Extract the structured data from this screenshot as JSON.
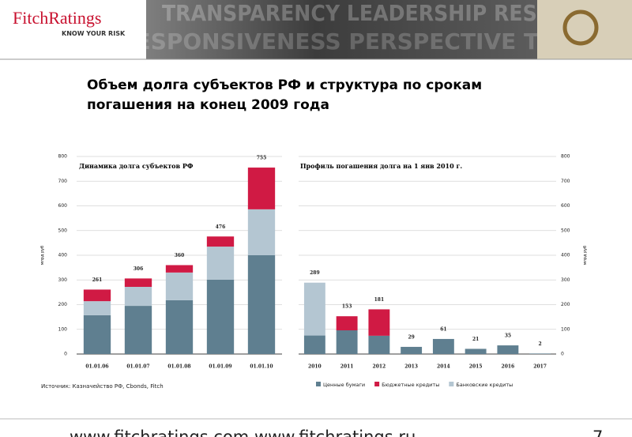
{
  "header": {
    "logo": "FitchRatings",
    "tagline": "KNOW YOUR RISK",
    "banner_top": "TRANSPARENCY LEADERSHIP RESPONSIVENESS",
    "banner_bottom": "RESPONSIVENESS PERSPECTIVE TRANSPARENCY"
  },
  "title": "Объем долга субъектов РФ и структура по срокам погашения на конец 2009 года",
  "chart_data": [
    {
      "type": "stacked-bar",
      "title": "Динамика долга субъектов РФ",
      "y_label": "млрд руб",
      "categories": [
        "01.01.06",
        "01.01.07",
        "01.01.08",
        "01.01.09",
        "01.01.10"
      ],
      "series": [
        {
          "name": "Ценные бумаги",
          "color": "#5f7f90",
          "values": [
            157,
            195,
            218,
            301,
            400
          ]
        },
        {
          "name": "Банковские кредиты",
          "color": "#b4c6d2",
          "values": [
            57,
            77,
            112,
            134,
            186
          ]
        },
        {
          "name": "Бюджетные кредиты",
          "color": "#d01a44",
          "values": [
            47,
            34,
            30,
            41,
            169
          ]
        }
      ],
      "totals": [
        261,
        306,
        360,
        476,
        755
      ],
      "ylim": [
        0,
        800
      ],
      "yticks": [
        0,
        100,
        200,
        300,
        400,
        500,
        600,
        700,
        800
      ],
      "axis_side": "left",
      "grid": true
    },
    {
      "type": "stacked-bar",
      "title": "Профиль погашения долга на 1 янв 2010 г.",
      "y_label": "млрд руб",
      "categories": [
        "2010",
        "2011",
        "2012",
        "2013",
        "2014",
        "2015",
        "2016",
        "2017"
      ],
      "series": [
        {
          "color": "#5f7f90",
          "values": [
            75,
            96,
            74,
            29,
            61,
            21,
            35,
            2
          ]
        },
        {
          "color": "#b4c6d2",
          "values": [
            214,
            null,
            null,
            null,
            null,
            null,
            null,
            null
          ]
        },
        {
          "color": "#d01a44",
          "values": [
            null,
            57,
            107,
            null,
            null,
            null,
            null,
            null
          ]
        }
      ],
      "totals": [
        289,
        153,
        181,
        29,
        61,
        21,
        35,
        2
      ],
      "ylim": [
        0,
        800
      ],
      "yticks": [
        0,
        100,
        200,
        300,
        400,
        500,
        600,
        700,
        800
      ],
      "axis_side": "right",
      "grid": true
    }
  ],
  "source": "Источник: Казначейство РФ, Cbonds, Fitch",
  "footer": {
    "links": "www.fitchratings.com  www.fitchratings.ru",
    "page": "7"
  }
}
